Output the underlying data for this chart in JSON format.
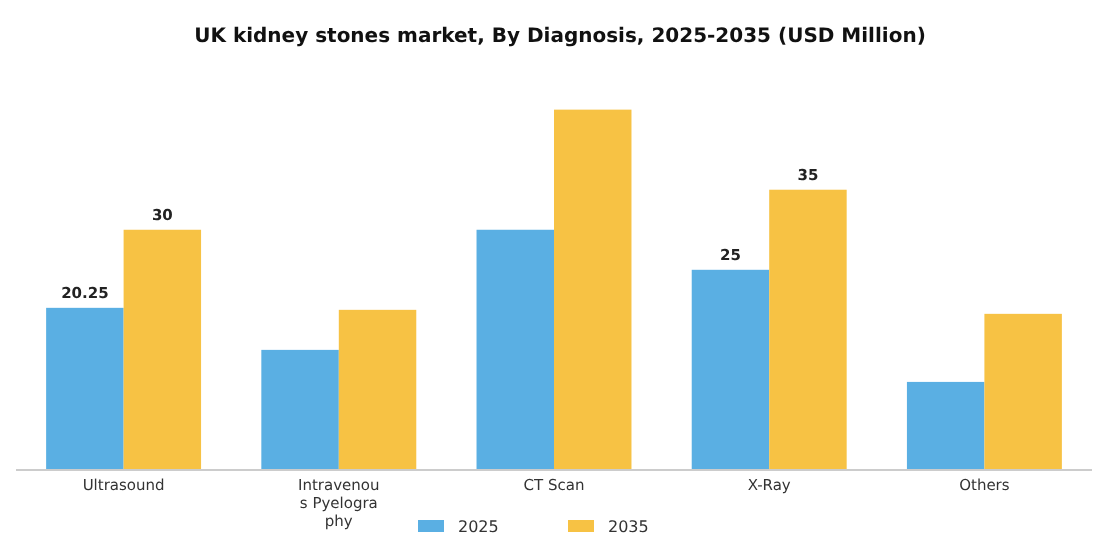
{
  "chart_data": {
    "type": "bar",
    "title": "UK kidney stones market, By Diagnosis, 2025-2035 (USD Million)",
    "categories": [
      "Ultrasound",
      "Intravenous Pyelography",
      "CT Scan",
      "X-Ray",
      "Others"
    ],
    "series": [
      {
        "name": "2025",
        "color": "#5aafe3",
        "values": [
          20.25,
          15,
          30,
          25,
          11
        ],
        "value_labels": [
          "20.25",
          null,
          null,
          "25",
          null
        ]
      },
      {
        "name": "2035",
        "color": "#f7c244",
        "values": [
          30,
          20,
          45,
          35,
          19.5
        ],
        "value_labels": [
          "30",
          null,
          null,
          "35",
          null
        ]
      }
    ],
    "tick_labels": "x",
    "legend": "bottom"
  }
}
